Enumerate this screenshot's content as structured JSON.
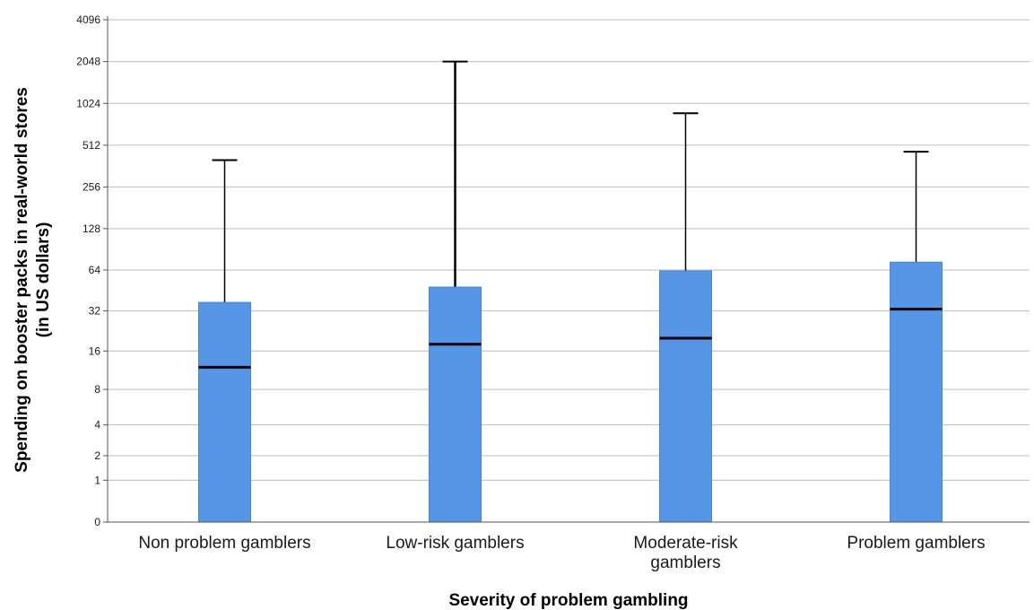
{
  "chart_data": {
    "type": "boxplot",
    "title": "",
    "xlabel": "Severity of problem gambling",
    "ylabel": [
      "Spending on booster packs in real-world stores",
      "(in US dollars)"
    ],
    "yscale": "log2(1+y)",
    "yticks": [
      0,
      1,
      2,
      4,
      8,
      16,
      32,
      64,
      128,
      256,
      512,
      1024,
      2048,
      4096
    ],
    "grid": true,
    "legend": "none",
    "colors": {
      "box": "#5596e6",
      "box_edge": "#4a86d4",
      "median": "#000000",
      "whisker": "#000000",
      "grid": "#bdbdbd",
      "axis": "#555555"
    },
    "categories": [
      [
        "Non problem gamblers"
      ],
      [
        "Low-risk gamblers"
      ],
      [
        "Moderate-risk",
        "gamblers"
      ],
      [
        "Problem gamblers"
      ]
    ],
    "boxes": [
      {
        "q1": 0,
        "median": 12,
        "q3": 37,
        "whisker_low": 0,
        "whisker_high": 400
      },
      {
        "q1": 0,
        "median": 18,
        "q3": 48,
        "whisker_low": 0,
        "whisker_high": 2048
      },
      {
        "q1": 0,
        "median": 20,
        "q3": 63,
        "whisker_low": 0,
        "whisker_high": 870
      },
      {
        "q1": 0,
        "median": 33,
        "q3": 73,
        "whisker_low": 0,
        "whisker_high": 460
      }
    ]
  }
}
